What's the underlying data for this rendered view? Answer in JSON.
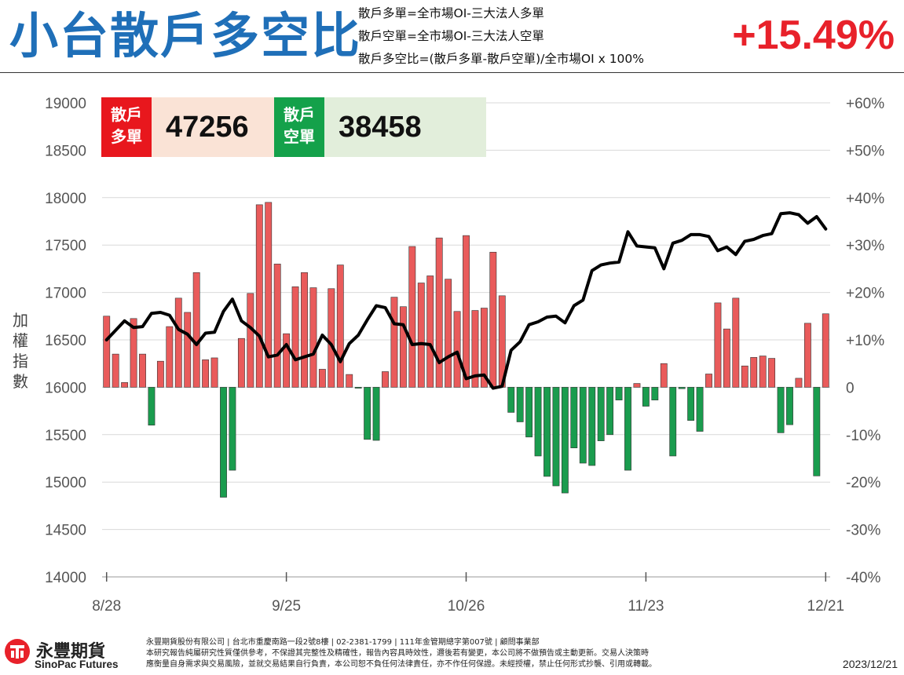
{
  "header": {
    "title": "小台散戶多空比",
    "definitions": [
      "散戶多單=全市場OI-三大法人多單",
      "散戶空單=全市場OI-三大法人空單",
      "散戶多空比=(散戶多單-散戶空單)/全市場OI x 100%"
    ],
    "ratio": "+15.49%"
  },
  "badges": {
    "long_label_1": "散戶",
    "long_label_2": "多單",
    "long_value": "47256",
    "short_label_1": "散戶",
    "short_label_2": "空單",
    "short_value": "38458"
  },
  "colors": {
    "long": "#e8171d",
    "short": "#14a14a",
    "bar_pos": "#e95b5b",
    "bar_neg": "#1a9c4e",
    "line": "#000000",
    "title": "#1f6fb8",
    "ratio": "#e8212a"
  },
  "chart_data": {
    "type": "bar+line",
    "left_axis_label": "加權指數",
    "left_ylim": [
      14000,
      19000
    ],
    "left_ticks": [
      "19000",
      "18500",
      "18000",
      "17500",
      "17000",
      "16500",
      "16000",
      "15500",
      "15000",
      "14500",
      "14000"
    ],
    "right_ylim": [
      -40,
      60
    ],
    "right_ticks": [
      "+60%",
      "+50%",
      "+40%",
      "+30%",
      "+20%",
      "+10%",
      "0",
      "-10%",
      "-20%",
      "-30%",
      "-40%"
    ],
    "x_tick_labels": [
      {
        "label": "8/28",
        "index": 0
      },
      {
        "label": "9/25",
        "index": 20
      },
      {
        "label": "10/26",
        "index": 40
      },
      {
        "label": "11/23",
        "index": 60
      },
      {
        "label": "12/21",
        "index": 80
      }
    ],
    "grid": true,
    "series": [
      {
        "name": "散戶多空比",
        "type": "bar",
        "unit": "%",
        "values": [
          15,
          7,
          1,
          14.5,
          7,
          -8,
          5.5,
          12.8,
          18.8,
          15.8,
          24.2,
          5.8,
          6.2,
          -23.2,
          -17.5,
          10.3,
          19.8,
          38.5,
          39,
          26,
          11.3,
          21.2,
          24.2,
          21,
          3.8,
          20.8,
          25.8,
          2.7,
          -0.2,
          -11,
          -11.2,
          3.3,
          19,
          17,
          29.7,
          22,
          23.5,
          31.5,
          22.8,
          16,
          32,
          16.2,
          16.7,
          28.5,
          19.3,
          -5.3,
          -7.3,
          -10.5,
          -14.5,
          -18.8,
          -20.8,
          -22.3,
          -12.8,
          -16,
          -16.5,
          -11.3,
          -10,
          -2.7,
          -17.5,
          0.8,
          -4,
          -2.7,
          5,
          -14.5,
          -0.3,
          -7,
          -9.3,
          2.8,
          17.8,
          12.3,
          18.8,
          4.5,
          6.3,
          6.6,
          6.1,
          -9.6,
          -7.9,
          1.9,
          13.5,
          -18.7,
          15.5
        ]
      },
      {
        "name": "加權指數",
        "type": "line",
        "values": [
          16500,
          16600,
          16700,
          16630,
          16640,
          16780,
          16790,
          16760,
          16610,
          16560,
          16450,
          16570,
          16580,
          16800,
          16930,
          16700,
          16630,
          16540,
          16320,
          16340,
          16450,
          16290,
          16320,
          16350,
          16550,
          16450,
          16270,
          16460,
          16550,
          16710,
          16860,
          16840,
          16670,
          16660,
          16450,
          16460,
          16450,
          16260,
          16320,
          16370,
          16090,
          16120,
          16130,
          15990,
          16010,
          16390,
          16480,
          16660,
          16690,
          16740,
          16750,
          16680,
          16860,
          16920,
          17230,
          17290,
          17310,
          17320,
          17640,
          17490,
          17480,
          17470,
          17250,
          17520,
          17550,
          17610,
          17610,
          17590,
          17440,
          17480,
          17400,
          17540,
          17560,
          17600,
          17620,
          17830,
          17840,
          17820,
          17730,
          17800,
          17670
        ]
      }
    ]
  },
  "footer": {
    "logo_cn": "永豐期貨",
    "logo_en": "SinoPac Futures",
    "disclaimer_1": "永豐期貨股份有限公司 | 台北市重慶南路一段2號8樓 | 02-2381-1799 | 111年金管期總字第007號 | 顧問事業部",
    "disclaimer_2": "本研究報告純屬研究性質僅供參考，不保證其完整性及精確性，報告內容具時效性，邇後若有變更，本公司將不做預告或主動更新。交易人決策時",
    "disclaimer_3": "應衡量自身需求與交易風險，並就交易結果自行負責，本公司恕不負任何法律責任，亦不作任何保證。未經授權，禁止任何形式抄襲、引用或轉載。",
    "date": "2023/12/21"
  }
}
